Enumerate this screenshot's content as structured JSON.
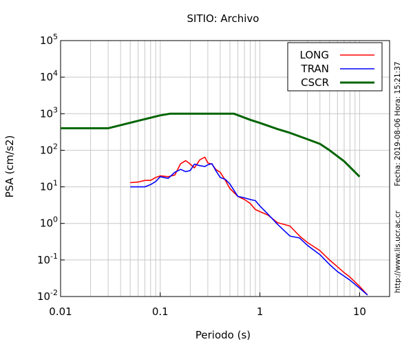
{
  "chart_data": {
    "type": "line",
    "title": "SITIO: Archivo",
    "xlabel": "Periodo (s)",
    "ylabel": "PSA (cm/s2)",
    "x_scale": "log",
    "y_scale": "log",
    "xlim": [
      0.01,
      20
    ],
    "ylim": [
      0.01,
      100000
    ],
    "grid": true,
    "legend_position": "top-right",
    "x_ticks": [
      {
        "value": 0.01,
        "label": "0.01"
      },
      {
        "value": 0.1,
        "label": "0.1"
      },
      {
        "value": 1,
        "label": "1"
      },
      {
        "value": 10,
        "label": "10"
      }
    ],
    "y_ticks": [
      {
        "value": 0.01,
        "base": "10",
        "exp": "-2"
      },
      {
        "value": 0.1,
        "base": "10",
        "exp": "-1"
      },
      {
        "value": 1,
        "base": "10",
        "exp": "0"
      },
      {
        "value": 10,
        "base": "10",
        "exp": "1"
      },
      {
        "value": 100,
        "base": "10",
        "exp": "2"
      },
      {
        "value": 1000,
        "base": "10",
        "exp": "3"
      },
      {
        "value": 10000,
        "base": "10",
        "exp": "4"
      },
      {
        "value": 100000,
        "base": "10",
        "exp": "5"
      }
    ],
    "side_text_1": "Fecha: 2019-08-06  Hora: 15:21:37",
    "side_text_2": "http://www.lis.ucr.ac.cr",
    "series": [
      {
        "name": "LONG",
        "color": "#ff0000",
        "x": [
          0.05,
          0.06,
          0.07,
          0.08,
          0.09,
          0.1,
          0.12,
          0.14,
          0.16,
          0.18,
          0.2,
          0.22,
          0.25,
          0.28,
          0.3,
          0.33,
          0.36,
          0.4,
          0.45,
          0.5,
          0.6,
          0.7,
          0.8,
          0.9,
          1.0,
          1.2,
          1.5,
          2.0,
          2.5,
          3.0,
          4.0,
          5.0,
          6.0,
          7.0,
          8.0,
          10.0,
          12.0
        ],
        "y": [
          13,
          13.5,
          15,
          15,
          18,
          20,
          19,
          21,
          43,
          52,
          42,
          33,
          55,
          65,
          45,
          42,
          30,
          25,
          15,
          9,
          5.5,
          4.5,
          3.5,
          2.4,
          2.1,
          1.7,
          1.05,
          0.85,
          0.45,
          0.3,
          0.18,
          0.1,
          0.065,
          0.045,
          0.034,
          0.019,
          0.011
        ]
      },
      {
        "name": "TRAN",
        "color": "#0000ff",
        "x": [
          0.05,
          0.06,
          0.07,
          0.08,
          0.09,
          0.1,
          0.12,
          0.14,
          0.16,
          0.18,
          0.2,
          0.22,
          0.25,
          0.28,
          0.3,
          0.33,
          0.36,
          0.4,
          0.45,
          0.5,
          0.6,
          0.7,
          0.8,
          0.9,
          1.0,
          1.2,
          1.5,
          2.0,
          2.5,
          3.0,
          4.0,
          5.0,
          6.0,
          7.0,
          8.0,
          10.0,
          12.0
        ],
        "y": [
          10,
          10,
          10,
          11.5,
          14,
          19,
          17,
          25,
          30,
          26,
          28,
          42,
          38,
          36,
          40,
          43,
          28,
          18,
          16,
          12,
          5.5,
          5,
          4.5,
          4.2,
          3,
          1.8,
          0.95,
          0.45,
          0.4,
          0.25,
          0.14,
          0.075,
          0.048,
          0.036,
          0.028,
          0.017,
          0.011
        ]
      },
      {
        "name": "CSCR",
        "color": "#006400",
        "x": [
          0.01,
          0.03,
          0.06,
          0.1,
          0.125,
          0.55,
          0.8,
          1.0,
          1.5,
          2.0,
          3.0,
          4.0,
          5.0,
          7.0,
          10.0
        ],
        "y": [
          400,
          400,
          640,
          900,
          1000,
          1000,
          680,
          560,
          380,
          300,
          200,
          150,
          100,
          50,
          19
        ]
      }
    ]
  }
}
